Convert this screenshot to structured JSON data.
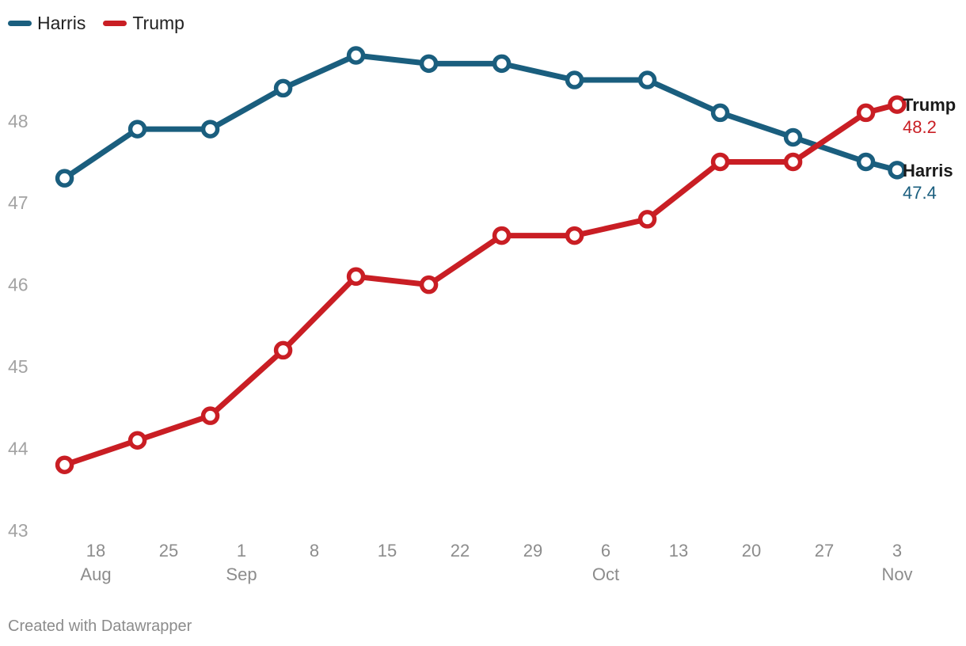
{
  "legend": [
    {
      "name": "Harris",
      "color": "#1a5e7e"
    },
    {
      "name": "Trump",
      "color": "#c91e24"
    }
  ],
  "credit": "Created with Datawrapper",
  "chart_data": {
    "type": "line",
    "title": "",
    "xlabel": "",
    "ylabel": "",
    "ylim": [
      43,
      49
    ],
    "yticks": [
      "43",
      "44",
      "45",
      "46",
      "47",
      "48"
    ],
    "xticks": [
      {
        "day": "18",
        "month": "Aug"
      },
      {
        "day": "25",
        "month": ""
      },
      {
        "day": "1",
        "month": "Sep"
      },
      {
        "day": "8",
        "month": ""
      },
      {
        "day": "15",
        "month": ""
      },
      {
        "day": "22",
        "month": ""
      },
      {
        "day": "29",
        "month": ""
      },
      {
        "day": "6",
        "month": "Oct"
      },
      {
        "day": "13",
        "month": ""
      },
      {
        "day": "20",
        "month": ""
      },
      {
        "day": "27",
        "month": ""
      },
      {
        "day": "3",
        "month": "Nov"
      }
    ],
    "x": [
      "Aug 15",
      "Aug 22",
      "Aug 29",
      "Sep 5",
      "Sep 12",
      "Sep 19",
      "Sep 26",
      "Oct 3",
      "Oct 10",
      "Oct 17",
      "Oct 24",
      "Oct 31",
      "Nov 3"
    ],
    "x_day_offsets": [
      -3,
      4,
      11,
      18,
      25,
      32,
      39,
      46,
      53,
      60,
      67,
      74,
      77
    ],
    "series": [
      {
        "name": "Harris",
        "color": "#1a5e7e",
        "values": [
          47.3,
          47.9,
          47.9,
          48.4,
          48.8,
          48.7,
          48.7,
          48.5,
          48.5,
          48.1,
          47.8,
          47.5,
          47.4
        ],
        "end_label": "Harris",
        "end_value": "47.4"
      },
      {
        "name": "Trump",
        "color": "#c91e24",
        "values": [
          43.8,
          44.1,
          44.4,
          45.2,
          46.1,
          46.0,
          46.6,
          46.6,
          46.8,
          47.5,
          47.5,
          48.1,
          48.2
        ],
        "end_label": "Trump",
        "end_value": "48.2"
      }
    ]
  }
}
